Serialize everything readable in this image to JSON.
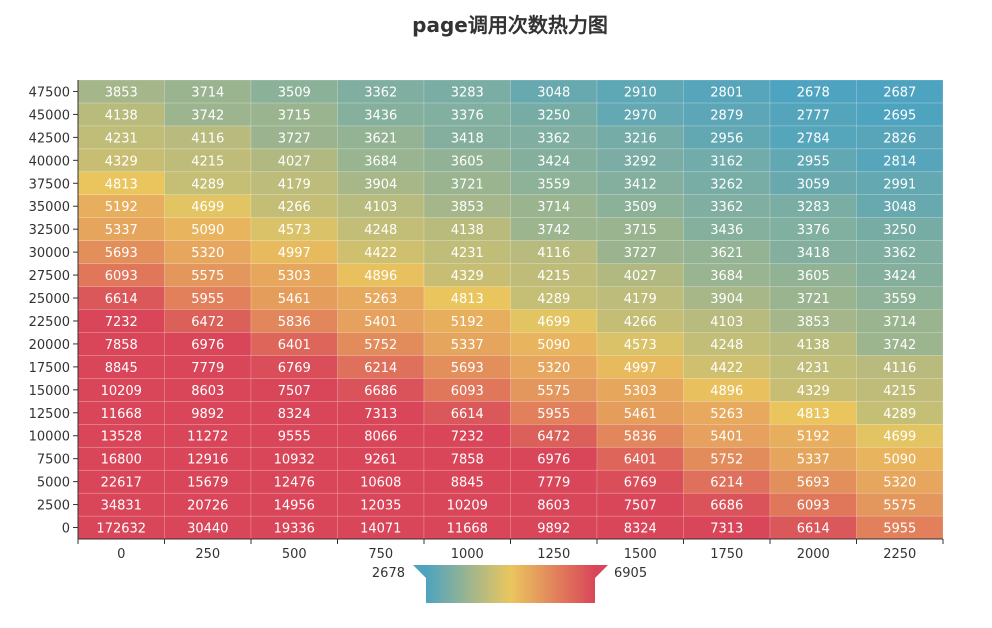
{
  "chart_data": {
    "type": "heatmap",
    "title": "page调用次数热力图",
    "x_categories": [
      "0",
      "250",
      "500",
      "750",
      "1000",
      "1250",
      "1500",
      "1750",
      "2000",
      "2250"
    ],
    "y_categories": [
      "0",
      "2500",
      "5000",
      "7500",
      "10000",
      "12500",
      "15000",
      "17500",
      "20000",
      "22500",
      "25000",
      "27500",
      "30000",
      "32500",
      "35000",
      "37500",
      "40000",
      "42500",
      "45000",
      "47500"
    ],
    "values": [
      [
        172632,
        30440,
        19336,
        14071,
        11668,
        9892,
        8324,
        7313,
        6614,
        5955
      ],
      [
        34831,
        20726,
        14956,
        12035,
        10209,
        8603,
        7507,
        6686,
        6093,
        5575
      ],
      [
        22617,
        15679,
        12476,
        10608,
        8845,
        7779,
        6769,
        6214,
        5693,
        5320
      ],
      [
        16800,
        12916,
        10932,
        9261,
        7858,
        6976,
        6401,
        5752,
        5337,
        5090
      ],
      [
        13528,
        11272,
        9555,
        8066,
        7232,
        6472,
        5836,
        5401,
        5192,
        4699
      ],
      [
        11668,
        9892,
        8324,
        7313,
        6614,
        5955,
        5461,
        5263,
        4813,
        4289
      ],
      [
        10209,
        8603,
        7507,
        6686,
        6093,
        5575,
        5303,
        4896,
        4329,
        4215
      ],
      [
        8845,
        7779,
        6769,
        6214,
        5693,
        5320,
        4997,
        4422,
        4231,
        4116
      ],
      [
        7858,
        6976,
        6401,
        5752,
        5337,
        5090,
        4573,
        4248,
        4138,
        3742
      ],
      [
        7232,
        6472,
        5836,
        5401,
        5192,
        4699,
        4266,
        4103,
        3853,
        3714
      ],
      [
        6614,
        5955,
        5461,
        5263,
        4813,
        4289,
        4179,
        3904,
        3721,
        3559
      ],
      [
        6093,
        5575,
        5303,
        4896,
        4329,
        4215,
        4027,
        3684,
        3605,
        3424
      ],
      [
        5693,
        5320,
        4997,
        4422,
        4231,
        4116,
        3727,
        3621,
        3418,
        3362
      ],
      [
        5337,
        5090,
        4573,
        4248,
        4138,
        3742,
        3715,
        3436,
        3376,
        3250
      ],
      [
        5192,
        4699,
        4266,
        4103,
        3853,
        3714,
        3509,
        3362,
        3283,
        3048
      ],
      [
        4813,
        4289,
        4179,
        3904,
        3721,
        3559,
        3412,
        3262,
        3059,
        2991
      ],
      [
        4329,
        4215,
        4027,
        3684,
        3605,
        3424,
        3292,
        3162,
        2955,
        2814
      ],
      [
        4231,
        4116,
        3727,
        3621,
        3418,
        3362,
        3216,
        2956,
        2784,
        2826
      ],
      [
        4138,
        3742,
        3715,
        3436,
        3376,
        3250,
        2970,
        2879,
        2777,
        2695
      ],
      [
        3853,
        3714,
        3509,
        3362,
        3283,
        3048,
        2910,
        2801,
        2678,
        2687
      ]
    ],
    "visual_map": {
      "min": 2678,
      "max": 6905,
      "min_label": "2678",
      "max_label": "6905",
      "colors": [
        "#4da3c0",
        "#eac65e",
        "#d94659"
      ]
    }
  }
}
